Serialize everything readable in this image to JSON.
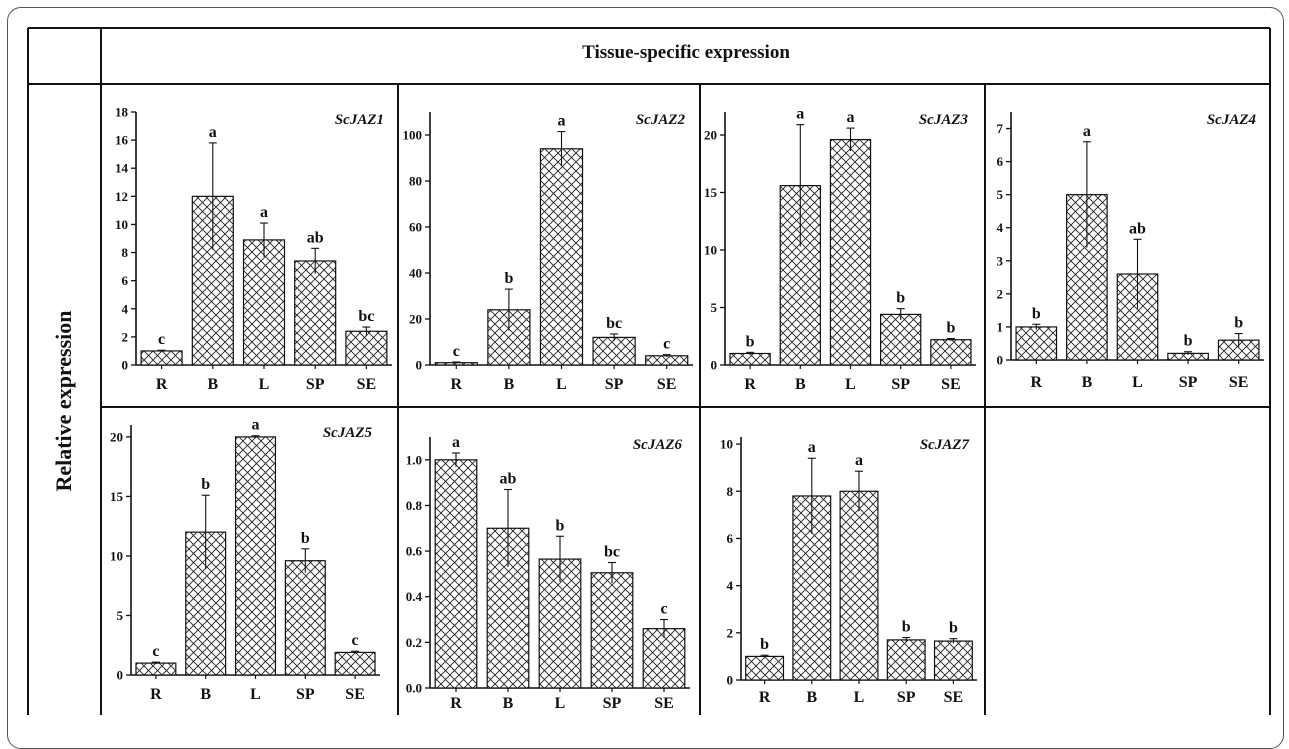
{
  "header": {
    "title": "Tissue-specific expression"
  },
  "ylabel": "Relative expression",
  "chart_data": [
    {
      "type": "bar",
      "title": "ScJAZ1",
      "categories": [
        "R",
        "B",
        "L",
        "SP",
        "SE"
      ],
      "values": [
        1.0,
        12.0,
        8.9,
        7.4,
        2.4
      ],
      "errors": [
        0.05,
        3.8,
        1.2,
        0.9,
        0.3
      ],
      "significance": [
        "c",
        "a",
        "a",
        "ab",
        "bc"
      ],
      "ylim": [
        0,
        18
      ],
      "yticks": [
        0,
        2,
        4,
        6,
        8,
        10,
        12,
        14,
        16,
        18
      ]
    },
    {
      "type": "bar",
      "title": "ScJAZ2",
      "categories": [
        "R",
        "B",
        "L",
        "SP",
        "SE"
      ],
      "values": [
        1.0,
        24,
        94,
        12,
        4
      ],
      "errors": [
        0.3,
        9,
        7.5,
        1.5,
        0.5
      ],
      "significance": [
        "c",
        "b",
        "a",
        "bc",
        "c"
      ],
      "ylim": [
        0,
        110
      ],
      "yticks": [
        0,
        20,
        40,
        60,
        80,
        100
      ]
    },
    {
      "type": "bar",
      "title": "ScJAZ3",
      "categories": [
        "R",
        "B",
        "L",
        "SP",
        "SE"
      ],
      "values": [
        1.0,
        15.6,
        19.6,
        4.4,
        2.2
      ],
      "errors": [
        0.1,
        5.3,
        1.0,
        0.5,
        0.1
      ],
      "significance": [
        "b",
        "a",
        "a",
        "b",
        "b"
      ],
      "ylim": [
        0,
        22
      ],
      "yticks": [
        0,
        5,
        10,
        15,
        20
      ]
    },
    {
      "type": "bar",
      "title": "ScJAZ4",
      "categories": [
        "R",
        "B",
        "L",
        "SP",
        "SE"
      ],
      "values": [
        1.0,
        5.0,
        2.6,
        0.2,
        0.6
      ],
      "errors": [
        0.08,
        1.6,
        1.05,
        0.05,
        0.2
      ],
      "significance": [
        "b",
        "a",
        "ab",
        "b",
        "b"
      ],
      "ylim": [
        0,
        7.5
      ],
      "yticks": [
        0,
        1,
        2,
        3,
        4,
        5,
        6,
        7
      ]
    },
    {
      "type": "bar",
      "title": "ScJAZ5",
      "categories": [
        "R",
        "B",
        "L",
        "SP",
        "SE"
      ],
      "values": [
        1.0,
        12.0,
        20.0,
        9.6,
        1.9
      ],
      "errors": [
        0.08,
        3.1,
        0.1,
        1.0,
        0.1
      ],
      "significance": [
        "c",
        "b",
        "a",
        "b",
        "c"
      ],
      "ylim": [
        0,
        21
      ],
      "yticks": [
        0,
        5,
        10,
        15,
        20
      ]
    },
    {
      "type": "bar",
      "title": "ScJAZ6",
      "categories": [
        "R",
        "B",
        "L",
        "SP",
        "SE"
      ],
      "values": [
        1.0,
        0.7,
        0.565,
        0.505,
        0.26
      ],
      "errors": [
        0.03,
        0.17,
        0.1,
        0.045,
        0.04
      ],
      "significance": [
        "a",
        "ab",
        "b",
        "bc",
        "c"
      ],
      "ylim": [
        0,
        1.1
      ],
      "yticks": [
        0.0,
        0.2,
        0.4,
        0.6,
        0.8,
        1.0
      ],
      "tickdecimals": 1
    },
    {
      "type": "bar",
      "title": "ScJAZ7",
      "categories": [
        "R",
        "B",
        "L",
        "SP",
        "SE"
      ],
      "values": [
        1.0,
        7.8,
        8.0,
        1.7,
        1.65
      ],
      "errors": [
        0.05,
        1.6,
        0.85,
        0.1,
        0.1
      ],
      "significance": [
        "b",
        "a",
        "a",
        "b",
        "b"
      ],
      "ylim": [
        0,
        10.3
      ],
      "yticks": [
        0,
        2,
        4,
        6,
        8,
        10
      ]
    }
  ]
}
